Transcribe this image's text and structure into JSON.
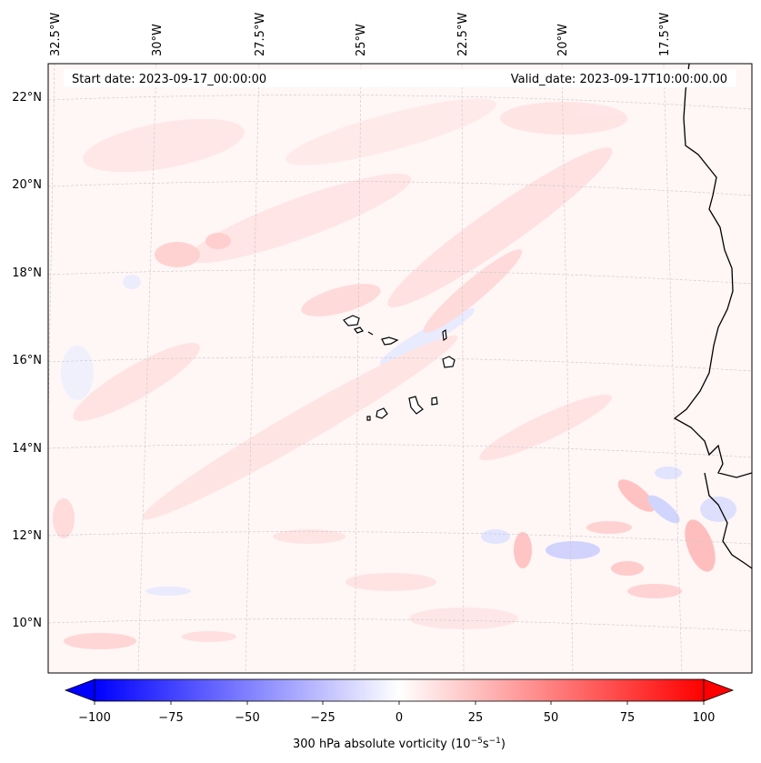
{
  "header": {
    "start_date": "Start date: 2023-09-17_00:00:00",
    "valid_date": "Valid_date: 2023-09-17T10:00:00.00"
  },
  "longitude_ticks": [
    "32.5°W",
    "30°W",
    "27.5°W",
    "25°W",
    "22.5°W",
    "20°W",
    "17.5°W"
  ],
  "latitude_ticks": [
    "22°N",
    "20°N",
    "18°N",
    "16°N",
    "14°N",
    "12°N",
    "10°N"
  ],
  "colorbar": {
    "ticks": [
      "−100",
      "−75",
      "−50",
      "−25",
      "0",
      "25",
      "50",
      "75",
      "100"
    ],
    "label_prefix": "300 hPa absolute vorticity (10",
    "label_exp1": "−5",
    "label_mid": "s",
    "label_exp2": "−1",
    "label_suffix": ")",
    "min_color": "#0000ff",
    "mid_color": "#ffffff",
    "max_color": "#ff0000"
  },
  "chart_data": {
    "type": "heatmap",
    "field": "300 hPa absolute vorticity",
    "units": "10^-5 s^-1",
    "value_range": [
      -100,
      100
    ],
    "colormap": "bwr",
    "lon_range": [
      -33.0,
      -15.5
    ],
    "lat_range": [
      9.0,
      22.5
    ],
    "gridlines": true,
    "features": [
      "Cape Verde islands",
      "West African coastline"
    ]
  }
}
